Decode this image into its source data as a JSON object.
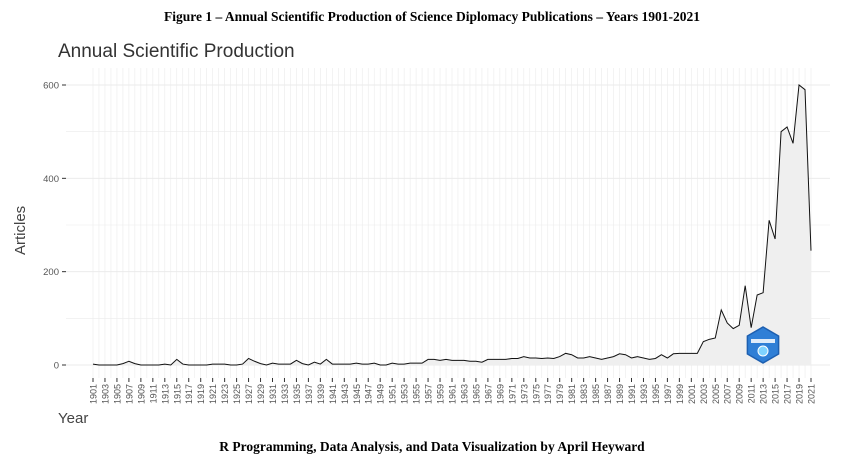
{
  "figure": {
    "title": "Figure 1 – Annual Scientific Production of Science Diplomacy Publications – Years 1901-2021",
    "caption": "R Programming, Data Analysis, and Data Visualization by April Heyward"
  },
  "colors": {
    "line": "#111111",
    "area": "#efefef",
    "grid": "#ebebeb",
    "logo": "#2f7fd6"
  },
  "logo": {
    "icon": "bibliometrix-hexagon-icon"
  },
  "chart_data": {
    "type": "area",
    "title": "Annual Scientific Production",
    "xlabel": "Year",
    "ylabel": "Articles",
    "ylim": [
      0,
      625
    ],
    "xlim": [
      1901,
      2021
    ],
    "yticks": [
      0,
      200,
      400,
      600
    ],
    "xticks": [
      1901,
      1903,
      1905,
      1907,
      1909,
      1911,
      1913,
      1915,
      1917,
      1919,
      1921,
      1923,
      1925,
      1927,
      1929,
      1931,
      1933,
      1935,
      1937,
      1939,
      1941,
      1943,
      1945,
      1947,
      1949,
      1951,
      1953,
      1955,
      1957,
      1959,
      1961,
      1963,
      1965,
      1967,
      1969,
      1971,
      1973,
      1975,
      1977,
      1979,
      1981,
      1983,
      1985,
      1987,
      1989,
      1991,
      1993,
      1995,
      1997,
      1999,
      2001,
      2003,
      2005,
      2007,
      2009,
      2011,
      2013,
      2015,
      2017,
      2019,
      2021
    ],
    "grid": true,
    "legend": "none",
    "x": [
      1901,
      1902,
      1903,
      1904,
      1905,
      1906,
      1907,
      1908,
      1909,
      1910,
      1911,
      1912,
      1913,
      1914,
      1915,
      1916,
      1917,
      1918,
      1919,
      1920,
      1921,
      1922,
      1923,
      1924,
      1925,
      1926,
      1927,
      1928,
      1929,
      1930,
      1931,
      1932,
      1933,
      1934,
      1935,
      1936,
      1937,
      1938,
      1939,
      1940,
      1941,
      1942,
      1943,
      1944,
      1945,
      1946,
      1947,
      1948,
      1949,
      1950,
      1951,
      1952,
      1953,
      1954,
      1955,
      1956,
      1957,
      1958,
      1959,
      1960,
      1961,
      1962,
      1963,
      1964,
      1965,
      1966,
      1967,
      1968,
      1969,
      1970,
      1971,
      1972,
      1973,
      1974,
      1975,
      1976,
      1977,
      1978,
      1979,
      1980,
      1981,
      1982,
      1983,
      1984,
      1985,
      1986,
      1987,
      1988,
      1989,
      1990,
      1991,
      1992,
      1993,
      1994,
      1995,
      1996,
      1997,
      1998,
      1999,
      2000,
      2001,
      2002,
      2003,
      2004,
      2005,
      2006,
      2007,
      2008,
      2009,
      2010,
      2011,
      2012,
      2013,
      2014,
      2015,
      2016,
      2017,
      2018,
      2019,
      2020,
      2021
    ],
    "y": [
      2,
      0,
      0,
      0,
      0,
      3,
      8,
      3,
      0,
      0,
      0,
      0,
      2,
      0,
      12,
      2,
      0,
      0,
      0,
      0,
      2,
      2,
      2,
      0,
      0,
      2,
      14,
      8,
      3,
      0,
      4,
      2,
      2,
      2,
      10,
      3,
      0,
      6,
      2,
      12,
      2,
      2,
      2,
      2,
      4,
      2,
      2,
      4,
      0,
      0,
      4,
      2,
      2,
      4,
      4,
      4,
      12,
      12,
      10,
      12,
      10,
      10,
      10,
      8,
      8,
      6,
      12,
      12,
      12,
      12,
      14,
      14,
      18,
      15,
      15,
      14,
      15,
      14,
      18,
      25,
      22,
      15,
      15,
      18,
      15,
      12,
      15,
      18,
      24,
      22,
      15,
      18,
      15,
      12,
      14,
      22,
      15,
      24,
      25,
      25,
      25,
      25,
      50,
      55,
      58,
      118,
      90,
      78,
      85,
      170,
      80,
      150,
      155,
      310,
      270,
      500,
      510,
      475,
      600,
      590,
      245
    ]
  }
}
